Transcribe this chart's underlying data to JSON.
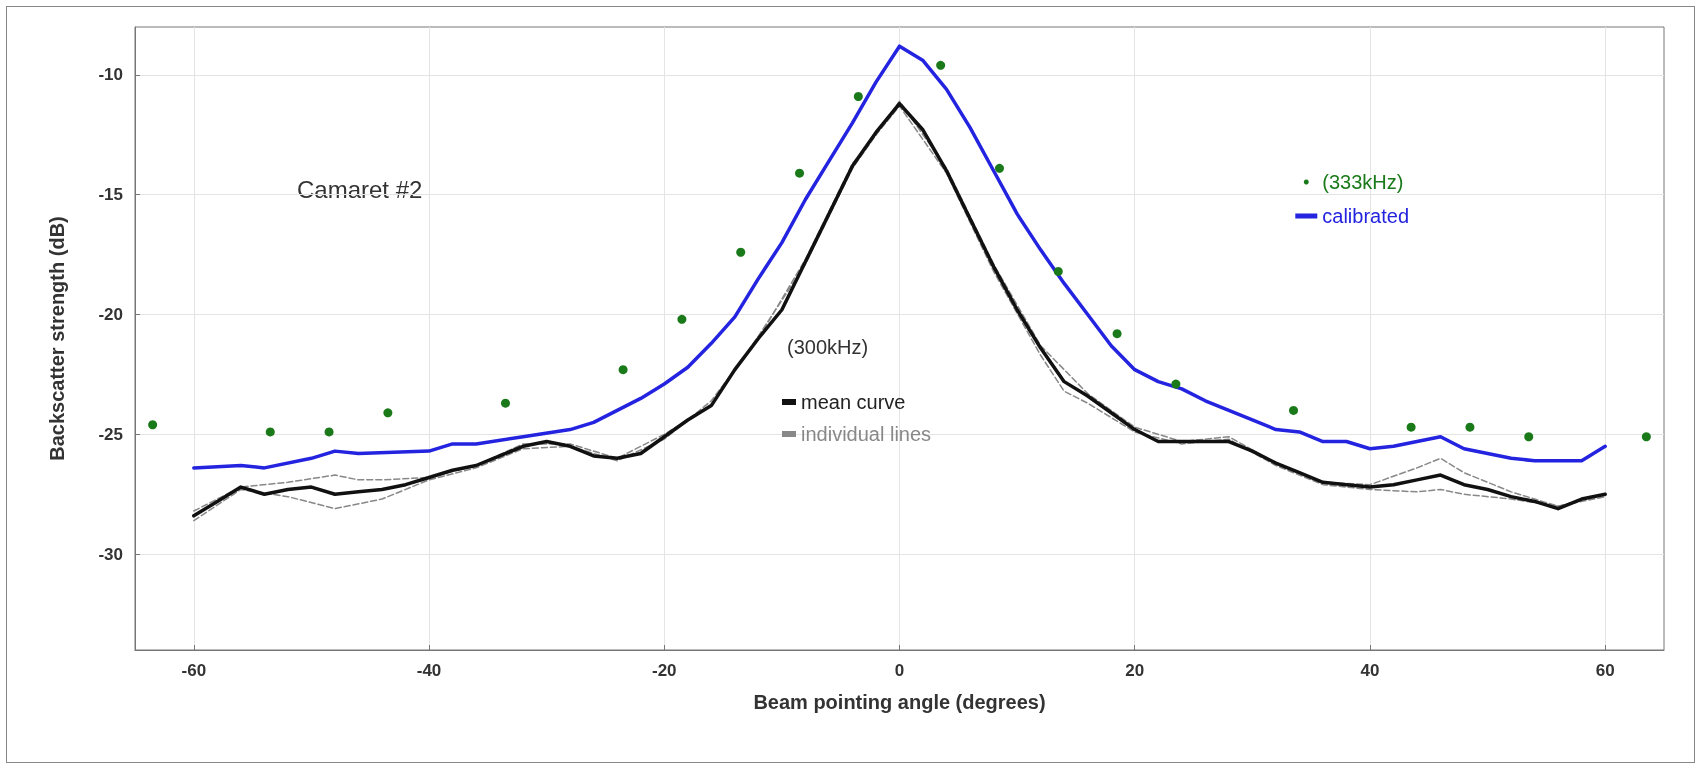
{
  "chart_data": {
    "type": "line",
    "xlabel": "Beam pointing angle (degrees)",
    "ylabel": "Backscatter strength (dB)",
    "annotations": [
      "Camaret #2"
    ],
    "legend_title": "(300kHz)",
    "xlim": [
      -65,
      65
    ],
    "xticks": [
      -60,
      -40,
      -20,
      0,
      20,
      40,
      60
    ],
    "ylim": [
      -34,
      -8
    ],
    "yticks": [
      -30,
      -25,
      -20,
      -15,
      -10
    ],
    "grid": true,
    "legend": "right",
    "series": [
      {
        "name": "(333kHz)",
        "type": "scatter",
        "marker": "circle",
        "color": "#1a7a1a",
        "x": [
          -63.5,
          -53.5,
          -48.5,
          -43.5,
          -33.5,
          -23.5,
          -18.5,
          -13.5,
          -8.5,
          -3.5,
          3.5,
          8.5,
          13.5,
          18.5,
          23.5,
          33.5,
          43.5,
          48.5,
          53.5,
          63.5
        ],
        "values": [
          -24.6,
          -24.9,
          -24.9,
          -24.1,
          -23.7,
          -22.3,
          -20.2,
          -17.4,
          -14.1,
          -10.9,
          -9.6,
          -13.9,
          -18.2,
          -20.8,
          -22.9,
          -24.0,
          -24.7,
          -24.7,
          -25.1,
          -25.1
        ]
      },
      {
        "name": "calibrated",
        "marker": "none",
        "line_style": "solid",
        "color": "#2323e0",
        "x": [
          -60,
          -56,
          -54,
          -50,
          -48,
          -46,
          -40,
          -38,
          -36,
          -32,
          -28,
          -26,
          -24,
          -22,
          -20,
          -18,
          -16,
          -14,
          -12,
          -10,
          -8,
          -6,
          -4,
          -2,
          0,
          2,
          4,
          6,
          8,
          10,
          12,
          14,
          16,
          18,
          20,
          22,
          24,
          26,
          28,
          30,
          32,
          34,
          36,
          38,
          40,
          42,
          44,
          46,
          48,
          50,
          52,
          54,
          56,
          58,
          60
        ],
        "values": [
          -26.4,
          -26.3,
          -26.4,
          -26.0,
          -25.7,
          -25.8,
          -25.7,
          -25.4,
          -25.4,
          -25.1,
          -24.8,
          -24.5,
          -24.0,
          -23.5,
          -22.9,
          -22.2,
          -21.2,
          -20.1,
          -18.5,
          -17.0,
          -15.2,
          -13.6,
          -12.0,
          -10.3,
          -8.8,
          -9.4,
          -10.6,
          -12.2,
          -14.0,
          -15.8,
          -17.3,
          -18.7,
          -20.0,
          -21.3,
          -22.3,
          -22.8,
          -23.1,
          -23.6,
          -24.0,
          -24.4,
          -24.8,
          -24.9,
          -25.3,
          -25.3,
          -25.6,
          -25.5,
          -25.3,
          -25.1,
          -25.6,
          -25.8,
          -26.0,
          -26.1,
          -26.1,
          -26.1,
          -25.5
        ]
      },
      {
        "name": "mean curve",
        "marker": "none",
        "line_style": "solid",
        "color": "#111111",
        "x": [
          -60,
          -58,
          -56,
          -54,
          -52,
          -50,
          -48,
          -46,
          -44,
          -42,
          -40,
          -38,
          -36,
          -34,
          -32,
          -30,
          -28,
          -26,
          -24,
          -22,
          -20,
          -18,
          -16,
          -14,
          -12,
          -10,
          -8,
          -6,
          -4,
          -2,
          0,
          2,
          4,
          6,
          8,
          10,
          12,
          14,
          16,
          18,
          20,
          22,
          24,
          26,
          28,
          30,
          32,
          34,
          36,
          38,
          40,
          42,
          44,
          46,
          48,
          50,
          52,
          54,
          56,
          58,
          60
        ],
        "values": [
          -28.4,
          -27.8,
          -27.2,
          -27.5,
          -27.3,
          -27.2,
          -27.5,
          -27.4,
          -27.3,
          -27.1,
          -26.8,
          -26.5,
          -26.3,
          -25.9,
          -25.5,
          -25.3,
          -25.5,
          -25.9,
          -26.0,
          -25.8,
          -25.1,
          -24.4,
          -23.8,
          -22.3,
          -21.0,
          -19.8,
          -17.8,
          -15.8,
          -13.8,
          -12.4,
          -11.2,
          -12.3,
          -14.0,
          -16.0,
          -18.0,
          -19.8,
          -21.4,
          -22.8,
          -23.4,
          -24.1,
          -24.8,
          -25.3,
          -25.3,
          -25.3,
          -25.3,
          -25.7,
          -26.2,
          -26.6,
          -27.0,
          -27.1,
          -27.2,
          -27.1,
          -26.9,
          -26.7,
          -27.1,
          -27.3,
          -27.6,
          -27.8,
          -28.1,
          -27.7,
          -27.5
        ]
      },
      {
        "name": "individual lines",
        "marker": "none",
        "line_style": "dashed",
        "color": "#888888",
        "x": [
          -60,
          -56,
          -52,
          -48,
          -44,
          -40,
          -36,
          -32,
          -28,
          -24,
          -20,
          -16,
          -12,
          -8,
          -4,
          0,
          4,
          8,
          12,
          14,
          16,
          20,
          24,
          28,
          32,
          36,
          40,
          44,
          46,
          48,
          52,
          56,
          60
        ],
        "values": [
          -28.6,
          -27.3,
          -27.6,
          -28.1,
          -27.7,
          -26.9,
          -26.4,
          -25.6,
          -25.5,
          -26.1,
          -25.2,
          -23.6,
          -21.0,
          -17.7,
          -13.7,
          -11.3,
          -14.1,
          -18.2,
          -21.7,
          -23.2,
          -23.7,
          -24.9,
          -25.4,
          -25.2,
          -26.3,
          -27.1,
          -27.3,
          -27.4,
          -27.3,
          -27.5,
          -27.7,
          -28.0,
          -27.6
        ]
      },
      {
        "marker": "none",
        "line_style": "dashed",
        "color": "#888888",
        "x": [
          -60,
          -56,
          -52,
          -48,
          -46,
          -44,
          -40,
          -36,
          -32,
          -28,
          -24,
          -20,
          -16,
          -12,
          -8,
          -4,
          0,
          4,
          8,
          12,
          16,
          20,
          24,
          28,
          32,
          36,
          40,
          44,
          46,
          48,
          52,
          56,
          60
        ],
        "values": [
          -28.2,
          -27.2,
          -27.0,
          -26.7,
          -26.9,
          -26.9,
          -26.8,
          -26.3,
          -25.4,
          -25.4,
          -26.0,
          -25.0,
          -23.8,
          -20.9,
          -17.9,
          -13.9,
          -11.1,
          -13.9,
          -17.9,
          -21.3,
          -23.3,
          -24.7,
          -25.3,
          -25.1,
          -26.2,
          -27.0,
          -27.1,
          -26.4,
          -26.0,
          -26.6,
          -27.4,
          -28.0,
          -27.5
        ]
      }
    ]
  }
}
